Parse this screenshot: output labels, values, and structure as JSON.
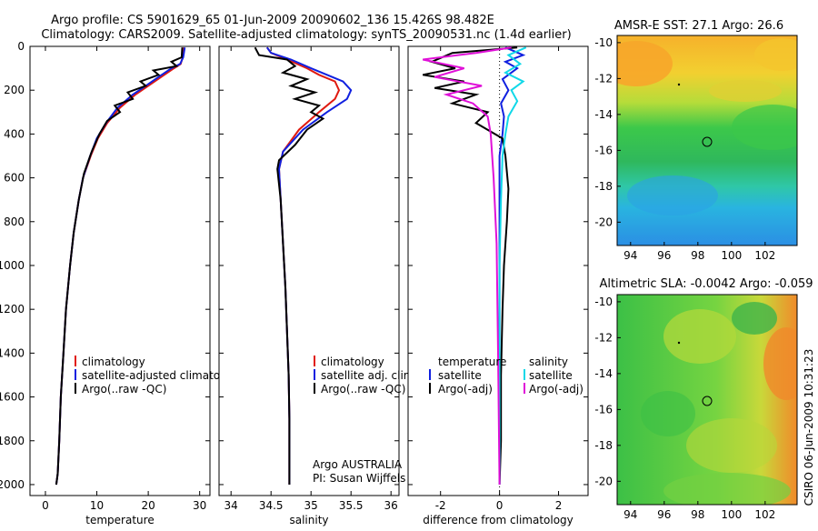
{
  "titles": {
    "line1": "Argo profile: CS 5901629_65 01-Jun-2009 20090602_136 15.426S 98.482E",
    "line2": "Climatology: CARS2009. Satellite-adjusted climatology: synTS_20090531.nc (1.4d earlier)"
  },
  "chart_data": [
    {
      "type": "line",
      "panel": "temperature",
      "xlabel": "temperature",
      "ylabel": "",
      "xlim": [
        -3,
        32
      ],
      "ylim": [
        2050,
        0
      ],
      "xticks": [
        0,
        10,
        20,
        30
      ],
      "yticks": [
        0,
        200,
        400,
        600,
        800,
        1000,
        1200,
        1400,
        1600,
        1800,
        2000
      ],
      "legend": [
        "climatology",
        "satellite-adjusted climatology",
        "Argo(..raw -QC)"
      ],
      "series": [
        {
          "name": "climatology",
          "color": "#e01a10",
          "x": [
            26.9,
            26.7,
            26.3,
            25.0,
            22.5,
            20.0,
            17.5,
            14.5,
            12.0,
            10.2,
            8.8,
            7.3,
            6.5,
            5.5,
            4.8,
            4.0,
            3.5,
            3.0,
            2.7,
            2.4,
            2.1
          ],
          "y": [
            5,
            50,
            80,
            100,
            140,
            180,
            220,
            280,
            350,
            420,
            500,
            600,
            700,
            850,
            1000,
            1200,
            1400,
            1600,
            1800,
            1950,
            2000
          ]
        },
        {
          "name": "satellite-adjusted climatology",
          "color": "#1020e0",
          "x": [
            27.1,
            26.8,
            26.2,
            24.5,
            22.0,
            19.5,
            17.0,
            14.0,
            11.8,
            10.0,
            8.7,
            7.3,
            6.5,
            5.5,
            4.8,
            4.0,
            3.5,
            3.0,
            2.7,
            2.4,
            2.1
          ],
          "y": [
            5,
            50,
            80,
            100,
            140,
            180,
            220,
            280,
            350,
            420,
            500,
            600,
            700,
            850,
            1000,
            1200,
            1400,
            1600,
            1800,
            1950,
            2000
          ]
        },
        {
          "name": "Argo(..raw -QC)",
          "color": "#000000",
          "x": [
            26.6,
            26.5,
            24.5,
            25.5,
            21.0,
            22.0,
            18.5,
            19.5,
            16.0,
            17.0,
            13.5,
            14.5,
            12.0,
            10.5,
            9.0,
            7.5,
            6.5,
            5.5,
            4.8,
            4.0,
            3.5,
            3.0,
            2.7,
            2.4,
            2.1
          ],
          "y": [
            5,
            50,
            70,
            90,
            110,
            130,
            160,
            180,
            210,
            240,
            270,
            300,
            340,
            400,
            480,
            580,
            700,
            850,
            1000,
            1200,
            1400,
            1600,
            1800,
            1950,
            2000
          ]
        }
      ]
    },
    {
      "type": "line",
      "panel": "salinity",
      "xlabel": "salinity",
      "ylabel": "",
      "xlim": [
        33.85,
        36.1
      ],
      "ylim": [
        2050,
        0
      ],
      "xticks": [
        34,
        34.5,
        35,
        35.5,
        36
      ],
      "legend": [
        "climatology",
        "satellite adj. clim.",
        "Argo(..raw -QC)"
      ],
      "annotation": [
        "Argo AUSTRALIA",
        "PI: Susan Wijffels"
      ],
      "series": [
        {
          "name": "climatology",
          "color": "#e01a10",
          "x": [
            34.45,
            34.5,
            34.7,
            34.95,
            35.1,
            35.3,
            35.35,
            35.3,
            35.1,
            34.85,
            34.65,
            34.6,
            34.62,
            34.65,
            34.68,
            34.7,
            34.72,
            34.73,
            34.73,
            34.73
          ],
          "y": [
            5,
            30,
            60,
            100,
            130,
            160,
            200,
            240,
            300,
            380,
            480,
            560,
            700,
            900,
            1100,
            1300,
            1500,
            1700,
            1900,
            2000
          ]
        },
        {
          "name": "satellite adj. clim.",
          "color": "#1020e0",
          "x": [
            34.45,
            34.5,
            34.75,
            35.0,
            35.2,
            35.4,
            35.5,
            35.45,
            35.2,
            34.9,
            34.65,
            34.6,
            34.62,
            34.65,
            34.68,
            34.7,
            34.72,
            34.73,
            34.73,
            34.73
          ],
          "y": [
            5,
            30,
            60,
            100,
            130,
            160,
            200,
            240,
            300,
            380,
            480,
            560,
            700,
            900,
            1100,
            1300,
            1500,
            1700,
            1900,
            2000
          ]
        },
        {
          "name": "Argo(..raw -QC)",
          "color": "#000000",
          "x": [
            34.3,
            34.35,
            34.7,
            34.8,
            34.65,
            34.95,
            34.75,
            35.05,
            34.8,
            35.1,
            35.0,
            35.15,
            34.95,
            34.8,
            34.6,
            34.58,
            34.62,
            34.65,
            34.68,
            34.7,
            34.72,
            34.73,
            34.73,
            34.73
          ],
          "y": [
            5,
            40,
            60,
            90,
            120,
            150,
            180,
            210,
            240,
            270,
            300,
            330,
            380,
            450,
            520,
            560,
            700,
            900,
            1100,
            1300,
            1500,
            1700,
            1900,
            2000
          ]
        }
      ]
    },
    {
      "type": "line",
      "panel": "difference",
      "xlabel": "difference from climatology",
      "ylabel": "",
      "xlim": [
        -3.1,
        3.0
      ],
      "ylim": [
        2050,
        0
      ],
      "xticks": [
        -2,
        0,
        2
      ],
      "legend": [
        "temperature",
        "satellite",
        "Argo(-adj)",
        "salinity",
        "satellite",
        "Argo(-adj)"
      ],
      "series": [
        {
          "name": "temperature satellite",
          "color": "#1020e0",
          "x": [
            0.2,
            0.8,
            0.2,
            0.6,
            0.1,
            0.3,
            0.05,
            0.15,
            0.1,
            0.0,
            0.0,
            0.0,
            0.0,
            0.0
          ],
          "y": [
            5,
            40,
            70,
            100,
            150,
            200,
            260,
            320,
            400,
            500,
            700,
            1000,
            1500,
            2000
          ]
        },
        {
          "name": "temperature Argo(-adj)",
          "color": "#000000",
          "x": [
            0.6,
            -1.6,
            -2.3,
            -1.5,
            -2.6,
            -1.2,
            -2.2,
            -0.8,
            -1.6,
            -0.4,
            -0.8,
            0.1,
            0.2,
            0.3,
            0.25,
            0.15,
            0.1,
            0.05,
            0.05,
            0.0
          ],
          "y": [
            5,
            30,
            70,
            100,
            130,
            160,
            190,
            220,
            260,
            300,
            350,
            420,
            500,
            650,
            800,
            1000,
            1200,
            1500,
            1800,
            2000
          ]
        },
        {
          "name": "salinity satellite",
          "color": "#10d8e8",
          "x": [
            0.9,
            0.3,
            0.7,
            0.2,
            0.8,
            0.4,
            0.6,
            0.3,
            0.2,
            0.1,
            0.05,
            0.0,
            0.0,
            0.0
          ],
          "y": [
            5,
            40,
            80,
            120,
            160,
            200,
            250,
            320,
            400,
            500,
            700,
            1000,
            1500,
            2000
          ]
        },
        {
          "name": "salinity Argo(-adj)",
          "color": "#e010d8",
          "x": [
            0.4,
            -0.8,
            -2.6,
            -1.2,
            -2.2,
            -0.6,
            -1.8,
            -0.9,
            -0.4,
            -0.3,
            -0.2,
            -0.1,
            -0.05,
            0.0
          ],
          "y": [
            5,
            30,
            60,
            100,
            140,
            180,
            220,
            260,
            320,
            400,
            600,
            900,
            1400,
            2000
          ]
        }
      ]
    }
  ],
  "maps": [
    {
      "title": "AMSR-E SST: 27.1  Argo: 26.6",
      "xticks": [
        "94",
        "96",
        "98",
        "100",
        "102"
      ],
      "yticks": [
        "-10",
        "-12",
        "-14",
        "-16",
        "-18",
        "-20"
      ]
    },
    {
      "title": "Altimetric SLA: -0.0042  Argo: -0.059",
      "xticks": [
        "94",
        "96",
        "98",
        "100",
        "102"
      ],
      "yticks": [
        "-10",
        "-12",
        "-14",
        "-16",
        "-18",
        "-20"
      ]
    }
  ],
  "side_label": "CSIRO  06-Jun-2009 10:31:23"
}
